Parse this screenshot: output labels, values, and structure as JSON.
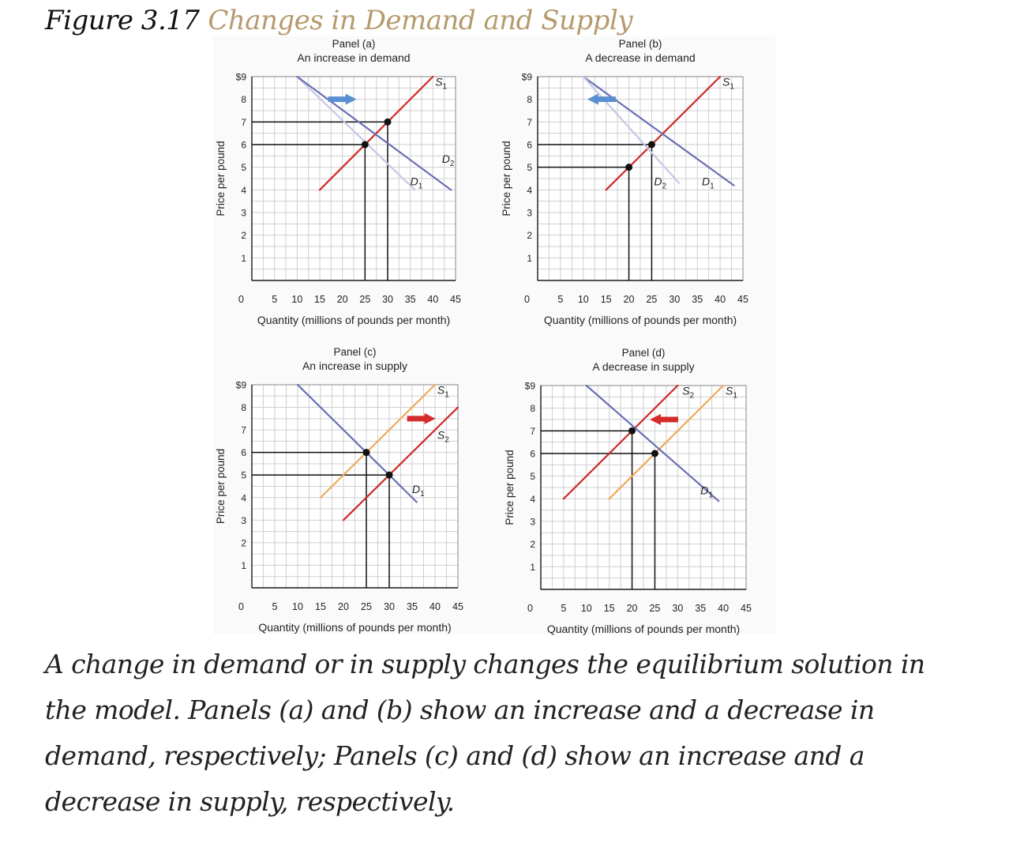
{
  "figure": {
    "label": "Figure 3.17",
    "title": "Changes in Demand and Supply",
    "caption": "A change in demand or in supply changes the equilibrium solution in the model. Panels (a) and (b) show an increase and a decrease in demand, respectively; Panels (c) and (d) show an increase and a decrease in supply, respectively."
  },
  "colors": {
    "supply_red": "#cc2b26",
    "supply_orange": "#f0a958",
    "demand_dark": "#6a6fb5",
    "demand_light": "#c5c8e6",
    "arrow_blue": "#5b8fd1",
    "arrow_red": "#d42b2b",
    "grid": "#cfcfcf"
  },
  "chart_data": [
    {
      "type": "line",
      "panel": "Panel (a)",
      "subtitle": "An increase in demand",
      "xlabel": "Quantity (millions of pounds per month)",
      "ylabel": "Price per pound",
      "xlim": [
        0,
        45
      ],
      "ylim": [
        0,
        9
      ],
      "x_ticks": [
        "5",
        "10",
        "15",
        "20",
        "25",
        "30",
        "35",
        "40",
        "45"
      ],
      "y_ticks": [
        "1",
        "2",
        "3",
        "4",
        "5",
        "6",
        "7",
        "8",
        "$9"
      ],
      "origin_label": "0",
      "grid": true,
      "series": [
        {
          "name": "S1",
          "sub": "1",
          "color": "supply_red",
          "points": [
            [
              15,
              4
            ],
            [
              40,
              9
            ]
          ],
          "label_at": [
            40.5,
            8.6
          ]
        },
        {
          "name": "D1",
          "sub": "1",
          "color": "demand_light",
          "points": [
            [
              10,
              9
            ],
            [
              36,
              4
            ]
          ],
          "label_at": [
            35,
            4.2
          ]
        },
        {
          "name": "D2",
          "sub": "2",
          "color": "demand_dark",
          "points": [
            [
              10,
              9
            ],
            [
              44,
              4
            ]
          ],
          "label_at": [
            42,
            5.2
          ]
        }
      ],
      "equilibria": [
        [
          25,
          6
        ],
        [
          30,
          7
        ]
      ],
      "shift_arrow": {
        "direction": "right",
        "color": "arrow_blue",
        "at": [
          20,
          8
        ]
      }
    },
    {
      "type": "line",
      "panel": "Panel (b)",
      "subtitle": "A decrease in demand",
      "xlabel": "Quantity (millions of pounds per month)",
      "ylabel": "Price per pound",
      "xlim": [
        0,
        45
      ],
      "ylim": [
        0,
        9
      ],
      "x_ticks": [
        "5",
        "10",
        "15",
        "20",
        "25",
        "30",
        "35",
        "40",
        "45"
      ],
      "y_ticks": [
        "1",
        "2",
        "3",
        "4",
        "5",
        "6",
        "7",
        "8",
        "$9"
      ],
      "origin_label": "0",
      "grid": true,
      "series": [
        {
          "name": "S1",
          "sub": "1",
          "color": "supply_red",
          "points": [
            [
              15,
              4
            ],
            [
              40,
              9
            ]
          ],
          "label_at": [
            40.5,
            8.6
          ]
        },
        {
          "name": "D1",
          "sub": "1",
          "color": "demand_dark",
          "points": [
            [
              10,
              9
            ],
            [
              43,
              4.2
            ]
          ],
          "label_at": [
            36,
            4.2
          ]
        },
        {
          "name": "D2",
          "sub": "2",
          "color": "demand_light",
          "points": [
            [
              10,
              9
            ],
            [
              31,
              4.3
            ]
          ],
          "label_at": [
            25.5,
            4.2
          ]
        }
      ],
      "equilibria": [
        [
          20,
          5
        ],
        [
          25,
          6
        ]
      ],
      "shift_arrow": {
        "direction": "left",
        "color": "arrow_blue",
        "at": [
          14,
          8
        ]
      }
    },
    {
      "type": "line",
      "panel": "Panel (c)",
      "subtitle": "An increase in supply",
      "xlabel": "Quantity (millions of pounds per month)",
      "ylabel": "Price per pound",
      "xlim": [
        0,
        45
      ],
      "ylim": [
        0,
        9
      ],
      "x_ticks": [
        "5",
        "10",
        "15",
        "20",
        "25",
        "30",
        "35",
        "40",
        "45"
      ],
      "y_ticks": [
        "1",
        "2",
        "3",
        "4",
        "5",
        "6",
        "7",
        "8",
        "$9"
      ],
      "origin_label": "0",
      "grid": true,
      "series": [
        {
          "name": "S1",
          "sub": "1",
          "color": "supply_orange",
          "points": [
            [
              15,
              4
            ],
            [
              40,
              9
            ]
          ],
          "label_at": [
            40.5,
            8.6
          ]
        },
        {
          "name": "S2",
          "sub": "2",
          "color": "supply_red",
          "points": [
            [
              20,
              3
            ],
            [
              45,
              8
            ]
          ],
          "label_at": [
            40.5,
            6.6
          ]
        },
        {
          "name": "D1",
          "sub": "1",
          "color": "demand_dark",
          "points": [
            [
              10,
              9
            ],
            [
              36,
              3.8
            ]
          ],
          "label_at": [
            35,
            4.2
          ]
        }
      ],
      "equilibria": [
        [
          25,
          6
        ],
        [
          30,
          5
        ]
      ],
      "shift_arrow": {
        "direction": "right",
        "color": "arrow_red",
        "at": [
          37,
          7.5
        ]
      }
    },
    {
      "type": "line",
      "panel": "Panel (d)",
      "subtitle": "A decrease in supply",
      "xlabel": "Quantity (millions of pounds per month)",
      "ylabel": "Price per pound",
      "xlim": [
        0,
        45
      ],
      "ylim": [
        0,
        9
      ],
      "x_ticks": [
        "5",
        "10",
        "15",
        "20",
        "25",
        "30",
        "35",
        "40",
        "45"
      ],
      "y_ticks": [
        "1",
        "2",
        "3",
        "4",
        "5",
        "6",
        "7",
        "8",
        "$9"
      ],
      "origin_label": "0",
      "grid": true,
      "series": [
        {
          "name": "S1",
          "sub": "1",
          "color": "supply_orange",
          "points": [
            [
              15,
              4
            ],
            [
              40,
              9
            ]
          ],
          "label_at": [
            40.5,
            8.6
          ]
        },
        {
          "name": "S2",
          "sub": "2",
          "color": "supply_red",
          "points": [
            [
              5,
              4
            ],
            [
              30,
              9
            ]
          ],
          "label_at": [
            31,
            8.6
          ]
        },
        {
          "name": "D1",
          "sub": "1",
          "color": "demand_dark",
          "points": [
            [
              10,
              9
            ],
            [
              39,
              3.9
            ]
          ],
          "label_at": [
            35,
            4.2
          ]
        }
      ],
      "equilibria": [
        [
          20,
          7
        ],
        [
          25,
          6
        ]
      ],
      "shift_arrow": {
        "direction": "left",
        "color": "arrow_red",
        "at": [
          27,
          7.5
        ]
      }
    }
  ]
}
